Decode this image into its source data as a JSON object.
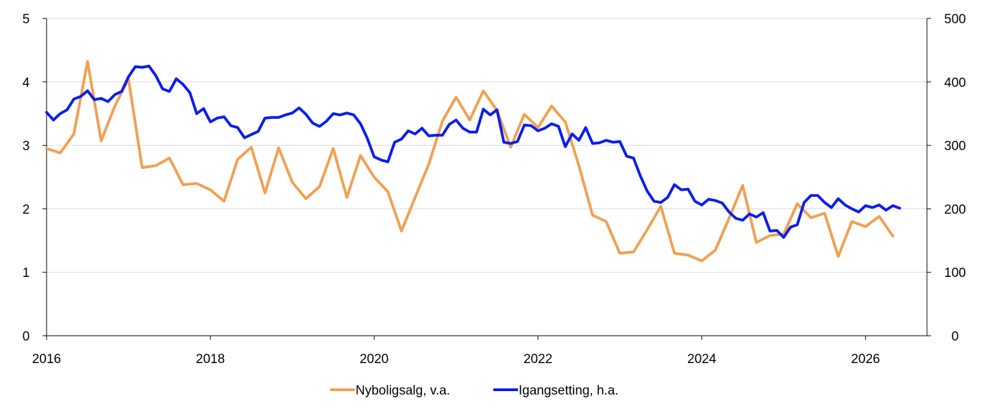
{
  "chart_data": {
    "type": "line",
    "title": "",
    "xlabel": "",
    "x_ticks": [
      "2016",
      "2018",
      "2020",
      "2022",
      "2024",
      "2026"
    ],
    "x_range": [
      2016.0,
      2026.75
    ],
    "left_axis": {
      "label": "",
      "ylim": [
        0,
        5
      ],
      "ticks": [
        "0",
        "1",
        "2",
        "3",
        "4",
        "5"
      ]
    },
    "right_axis": {
      "label": "",
      "ylim": [
        0,
        500
      ],
      "ticks": [
        "0",
        "100",
        "200",
        "300",
        "400",
        "500"
      ]
    },
    "grid": "horizontal",
    "legend_position": "bottom-center",
    "series": [
      {
        "name": "Nyboligsalg, v.a.",
        "axis": "left",
        "color": "#F0A054",
        "points": [
          [
            2016.0,
            2.95
          ],
          [
            2016.1667,
            2.88
          ],
          [
            2016.3333,
            3.18
          ],
          [
            2016.5,
            4.32
          ],
          [
            2016.6667,
            3.07
          ],
          [
            2016.8333,
            3.62
          ],
          [
            2017.0,
            4.05
          ],
          [
            2017.1667,
            2.65
          ],
          [
            2017.3333,
            2.68
          ],
          [
            2017.5,
            2.8
          ],
          [
            2017.6667,
            2.38
          ],
          [
            2017.8333,
            2.4
          ],
          [
            2018.0,
            2.3
          ],
          [
            2018.1667,
            2.12
          ],
          [
            2018.3333,
            2.78
          ],
          [
            2018.5,
            2.97
          ],
          [
            2018.6667,
            2.25
          ],
          [
            2018.8333,
            2.96
          ],
          [
            2019.0,
            2.42
          ],
          [
            2019.1667,
            2.16
          ],
          [
            2019.3333,
            2.35
          ],
          [
            2019.5,
            2.95
          ],
          [
            2019.6667,
            2.18
          ],
          [
            2019.8333,
            2.84
          ],
          [
            2020.0,
            2.5
          ],
          [
            2020.1667,
            2.27
          ],
          [
            2020.3333,
            1.65
          ],
          [
            2020.5,
            2.18
          ],
          [
            2020.6667,
            2.7
          ],
          [
            2020.8333,
            3.38
          ],
          [
            2021.0,
            3.76
          ],
          [
            2021.1667,
            3.4
          ],
          [
            2021.3333,
            3.86
          ],
          [
            2021.5,
            3.55
          ],
          [
            2021.6667,
            2.97
          ],
          [
            2021.8333,
            3.49
          ],
          [
            2022.0,
            3.28
          ],
          [
            2022.1667,
            3.62
          ],
          [
            2022.3333,
            3.37
          ],
          [
            2022.5,
            2.68
          ],
          [
            2022.6667,
            1.9
          ],
          [
            2022.8333,
            1.8
          ],
          [
            2023.0,
            1.3
          ],
          [
            2023.1667,
            1.32
          ],
          [
            2023.3333,
            1.67
          ],
          [
            2023.5,
            2.04
          ],
          [
            2023.6667,
            1.3
          ],
          [
            2023.8333,
            1.27
          ],
          [
            2024.0,
            1.18
          ],
          [
            2024.1667,
            1.35
          ],
          [
            2024.3333,
            1.85
          ],
          [
            2024.5,
            2.37
          ],
          [
            2024.6667,
            1.47
          ],
          [
            2024.8333,
            1.58
          ],
          [
            2025.0,
            1.6
          ],
          [
            2025.1667,
            2.08
          ],
          [
            2025.3333,
            1.86
          ],
          [
            2025.5,
            1.93
          ],
          [
            2025.6667,
            1.25
          ],
          [
            2025.8333,
            1.8
          ],
          [
            2026.0,
            1.72
          ],
          [
            2026.1667,
            1.88
          ],
          [
            2026.3333,
            1.57
          ]
        ]
      },
      {
        "name": "Igangsetting, h.a.",
        "axis": "right",
        "color": "#0A1EEB",
        "points": [
          [
            2016.0,
            352
          ],
          [
            2016.0833,
            340
          ],
          [
            2016.1667,
            350
          ],
          [
            2016.25,
            356
          ],
          [
            2016.3333,
            373
          ],
          [
            2016.4167,
            377
          ],
          [
            2016.5,
            386
          ],
          [
            2016.5833,
            372
          ],
          [
            2016.6667,
            374
          ],
          [
            2016.75,
            369
          ],
          [
            2016.8333,
            380
          ],
          [
            2016.9167,
            385
          ],
          [
            2017.0,
            408
          ],
          [
            2017.0833,
            424
          ],
          [
            2017.1667,
            423
          ],
          [
            2017.25,
            425
          ],
          [
            2017.3333,
            410
          ],
          [
            2017.4167,
            389
          ],
          [
            2017.5,
            385
          ],
          [
            2017.5833,
            405
          ],
          [
            2017.6667,
            396
          ],
          [
            2017.75,
            383
          ],
          [
            2017.8333,
            350
          ],
          [
            2017.9167,
            358
          ],
          [
            2018.0,
            337
          ],
          [
            2018.0833,
            343
          ],
          [
            2018.1667,
            345
          ],
          [
            2018.25,
            331
          ],
          [
            2018.3333,
            328
          ],
          [
            2018.4167,
            312
          ],
          [
            2018.5,
            317
          ],
          [
            2018.5833,
            322
          ],
          [
            2018.6667,
            343
          ],
          [
            2018.75,
            344
          ],
          [
            2018.8333,
            344
          ],
          [
            2018.9167,
            348
          ],
          [
            2019.0,
            351
          ],
          [
            2019.0833,
            359
          ],
          [
            2019.1667,
            349
          ],
          [
            2019.25,
            335
          ],
          [
            2019.3333,
            330
          ],
          [
            2019.4167,
            338
          ],
          [
            2019.5,
            350
          ],
          [
            2019.5833,
            348
          ],
          [
            2019.6667,
            351
          ],
          [
            2019.75,
            348
          ],
          [
            2019.8333,
            334
          ],
          [
            2019.9167,
            311
          ],
          [
            2020.0,
            282
          ],
          [
            2020.0833,
            277
          ],
          [
            2020.1667,
            274
          ],
          [
            2020.25,
            305
          ],
          [
            2020.3333,
            310
          ],
          [
            2020.4167,
            323
          ],
          [
            2020.5,
            318
          ],
          [
            2020.5833,
            327
          ],
          [
            2020.6667,
            315
          ],
          [
            2020.75,
            316
          ],
          [
            2020.8333,
            316
          ],
          [
            2020.9167,
            333
          ],
          [
            2021.0,
            340
          ],
          [
            2021.0833,
            327
          ],
          [
            2021.1667,
            321
          ],
          [
            2021.25,
            321
          ],
          [
            2021.3333,
            357
          ],
          [
            2021.4167,
            348
          ],
          [
            2021.5,
            356
          ],
          [
            2021.5833,
            305
          ],
          [
            2021.6667,
            303
          ],
          [
            2021.75,
            306
          ],
          [
            2021.8333,
            332
          ],
          [
            2021.9167,
            331
          ],
          [
            2022.0,
            323
          ],
          [
            2022.0833,
            327
          ],
          [
            2022.1667,
            334
          ],
          [
            2022.25,
            330
          ],
          [
            2022.3333,
            298
          ],
          [
            2022.4167,
            318
          ],
          [
            2022.5,
            308
          ],
          [
            2022.5833,
            328
          ],
          [
            2022.6667,
            303
          ],
          [
            2022.75,
            304
          ],
          [
            2022.8333,
            308
          ],
          [
            2022.9167,
            305
          ],
          [
            2023.0,
            306
          ],
          [
            2023.0833,
            283
          ],
          [
            2023.1667,
            280
          ],
          [
            2023.25,
            252
          ],
          [
            2023.3333,
            228
          ],
          [
            2023.4167,
            212
          ],
          [
            2023.5,
            210
          ],
          [
            2023.5833,
            218
          ],
          [
            2023.6667,
            238
          ],
          [
            2023.75,
            230
          ],
          [
            2023.8333,
            231
          ],
          [
            2023.9167,
            212
          ],
          [
            2024.0,
            206
          ],
          [
            2024.0833,
            215
          ],
          [
            2024.1667,
            213
          ],
          [
            2024.25,
            209
          ],
          [
            2024.3333,
            195
          ],
          [
            2024.4167,
            185
          ],
          [
            2024.5,
            182
          ],
          [
            2024.5833,
            192
          ],
          [
            2024.6667,
            187
          ],
          [
            2024.75,
            194
          ],
          [
            2024.8333,
            165
          ],
          [
            2024.9167,
            166
          ],
          [
            2025.0,
            155
          ],
          [
            2025.0833,
            171
          ],
          [
            2025.1667,
            175
          ],
          [
            2025.25,
            210
          ],
          [
            2025.3333,
            221
          ],
          [
            2025.4167,
            221
          ],
          [
            2025.5,
            210
          ],
          [
            2025.5833,
            202
          ],
          [
            2025.6667,
            216
          ],
          [
            2025.75,
            206
          ],
          [
            2025.8333,
            200
          ],
          [
            2025.9167,
            195
          ],
          [
            2026.0,
            205
          ],
          [
            2026.0833,
            202
          ],
          [
            2026.1667,
            206
          ],
          [
            2026.25,
            198
          ],
          [
            2026.3333,
            205
          ],
          [
            2026.4167,
            201
          ]
        ]
      }
    ]
  }
}
